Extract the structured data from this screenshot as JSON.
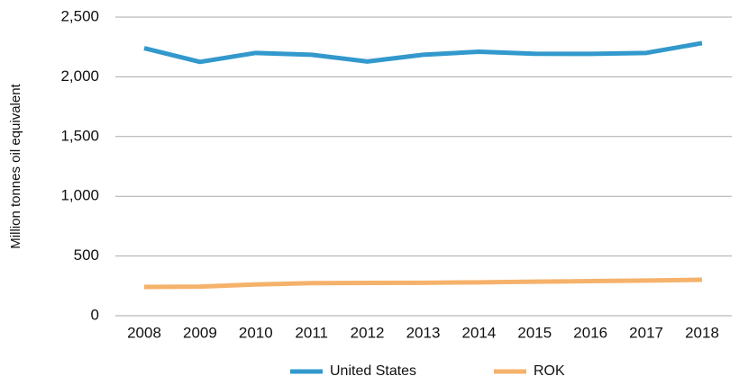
{
  "chart_data": {
    "type": "line",
    "y_axis_label": "Million tonnes oil equivalent",
    "categories": [
      "2008",
      "2009",
      "2010",
      "2011",
      "2012",
      "2013",
      "2014",
      "2015",
      "2016",
      "2017",
      "2018"
    ],
    "series": [
      {
        "name": "United States",
        "color": "#3399cc",
        "values": [
          2240,
          2125,
          2200,
          2185,
          2128,
          2185,
          2210,
          2193,
          2192,
          2200,
          2282
        ]
      },
      {
        "name": "ROK",
        "color": "#f5b26b",
        "values": [
          241,
          244,
          262,
          273,
          275,
          276,
          280,
          285,
          290,
          295,
          301
        ]
      }
    ],
    "ylim": [
      0,
      2500
    ],
    "yticks": [
      0,
      500,
      {
        "value": 1000,
        "label": "1,000"
      },
      {
        "value": 1500,
        "label": "1,500"
      },
      {
        "value": 2000,
        "label": "2,000"
      },
      {
        "value": 2500,
        "label": "2,500"
      }
    ],
    "grid": true,
    "legend": "bottom"
  }
}
